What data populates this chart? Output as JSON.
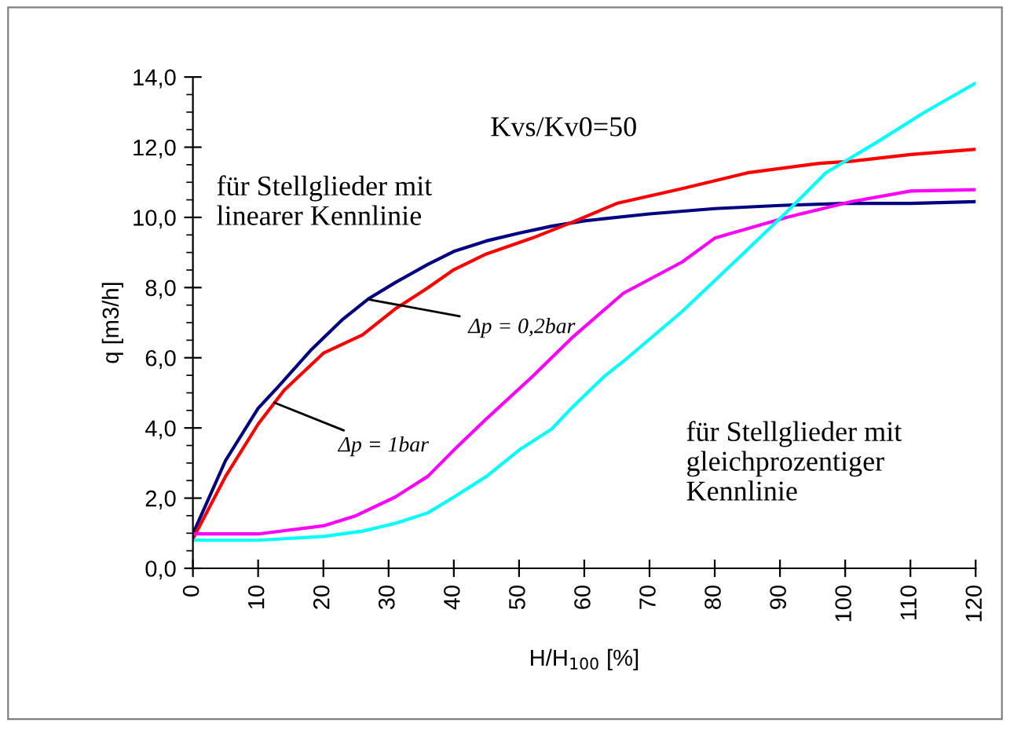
{
  "chart_data": {
    "type": "line",
    "xlabel": "H/H$_{100}$ [%]",
    "ylabel": "q [m3/h]",
    "xlim": [
      0,
      120
    ],
    "xticks": [
      0,
      10,
      20,
      30,
      40,
      50,
      60,
      70,
      80,
      90,
      100,
      110,
      120
    ],
    "ylim": [
      0,
      14
    ],
    "yticks": [
      {
        "value": 0,
        "label": "0,0"
      },
      {
        "value": 0.5,
        "label": null
      },
      {
        "value": 1,
        "label": null
      },
      {
        "value": 1.5,
        "label": null
      },
      {
        "value": 2,
        "label": "2,0"
      },
      {
        "value": 2.5,
        "label": null
      },
      {
        "value": 3,
        "label": null
      },
      {
        "value": 3.5,
        "label": null
      },
      {
        "value": 4,
        "label": "4,0"
      },
      {
        "value": 4.5,
        "label": null
      },
      {
        "value": 5,
        "label": null
      },
      {
        "value": 5.5,
        "label": null
      },
      {
        "value": 6,
        "label": "6,0"
      },
      {
        "value": 6.5,
        "label": null
      },
      {
        "value": 7,
        "label": null
      },
      {
        "value": 7.5,
        "label": null
      },
      {
        "value": 8,
        "label": "8,0"
      },
      {
        "value": 8.5,
        "label": null
      },
      {
        "value": 9,
        "label": null
      },
      {
        "value": 9.5,
        "label": null
      },
      {
        "value": 10,
        "label": "10,0"
      },
      {
        "value": 10.5,
        "label": null
      },
      {
        "value": 11,
        "label": null
      },
      {
        "value": 11.5,
        "label": null
      },
      {
        "value": 12,
        "label": "12,0"
      },
      {
        "value": 12.5,
        "label": null
      },
      {
        "value": 13,
        "label": null
      },
      {
        "value": 13.5,
        "label": null
      },
      {
        "value": 14,
        "label": "14,0"
      }
    ],
    "grid": false,
    "legend": false,
    "marker": "none",
    "line_style": "solid",
    "series": [
      {
        "color": "#000080",
        "x": [
          0,
          5,
          10,
          13,
          18,
          23,
          27,
          31,
          36,
          40,
          45,
          50,
          55,
          60,
          70,
          80,
          90,
          100,
          110,
          120
        ],
        "values": [
          0.98,
          3.07,
          4.56,
          5.16,
          6.2,
          7.1,
          7.69,
          8.14,
          8.66,
          9.03,
          9.33,
          9.55,
          9.75,
          9.9,
          10.1,
          10.25,
          10.34,
          10.4,
          10.4,
          10.45
        ]
      },
      {
        "color": "#ff0000",
        "x": [
          0,
          5,
          10,
          14,
          20,
          26,
          31,
          36,
          40,
          45,
          52,
          58,
          65,
          75,
          85,
          96,
          101,
          110,
          120
        ],
        "values": [
          0.84,
          2.62,
          4.11,
          5.08,
          6.13,
          6.65,
          7.39,
          7.99,
          8.51,
          8.96,
          9.41,
          9.85,
          10.4,
          10.82,
          11.27,
          11.54,
          11.6,
          11.79,
          11.94
        ]
      },
      {
        "color": "#ff00ff",
        "x": [
          0,
          10,
          20,
          25,
          31,
          36,
          40,
          45,
          52,
          58,
          66,
          75,
          80,
          91,
          101,
          110,
          120
        ],
        "values": [
          0.98,
          0.98,
          1.21,
          1.5,
          2.03,
          2.62,
          3.37,
          4.26,
          5.46,
          6.55,
          7.84,
          8.73,
          9.41,
          10.0,
          10.45,
          10.75,
          10.79
        ]
      },
      {
        "color": "#00ffff",
        "x": [
          0,
          10,
          20,
          26,
          31,
          36,
          40,
          45,
          50,
          55,
          58,
          63,
          66,
          75,
          83,
          91,
          97,
          105,
          112,
          120
        ],
        "values": [
          0.8,
          0.8,
          0.91,
          1.06,
          1.28,
          1.58,
          2.03,
          2.62,
          3.37,
          3.97,
          4.56,
          5.46,
          5.9,
          7.32,
          8.73,
          10.15,
          11.27,
          12.16,
          12.98,
          13.83
        ]
      }
    ],
    "annotations": [
      "Kvs/Kv0=50",
      "für Stellglieder mit\nlinearer Kennlinie",
      "für Stellglieder mit\ngleichprozentiger\nKennlinie",
      {
        "text": "Δp = 0,2bar",
        "x": 27,
        "y": 7.66
      },
      {
        "text": "Δp = 1bar",
        "x": 12.5,
        "y": 4.72
      }
    ]
  }
}
